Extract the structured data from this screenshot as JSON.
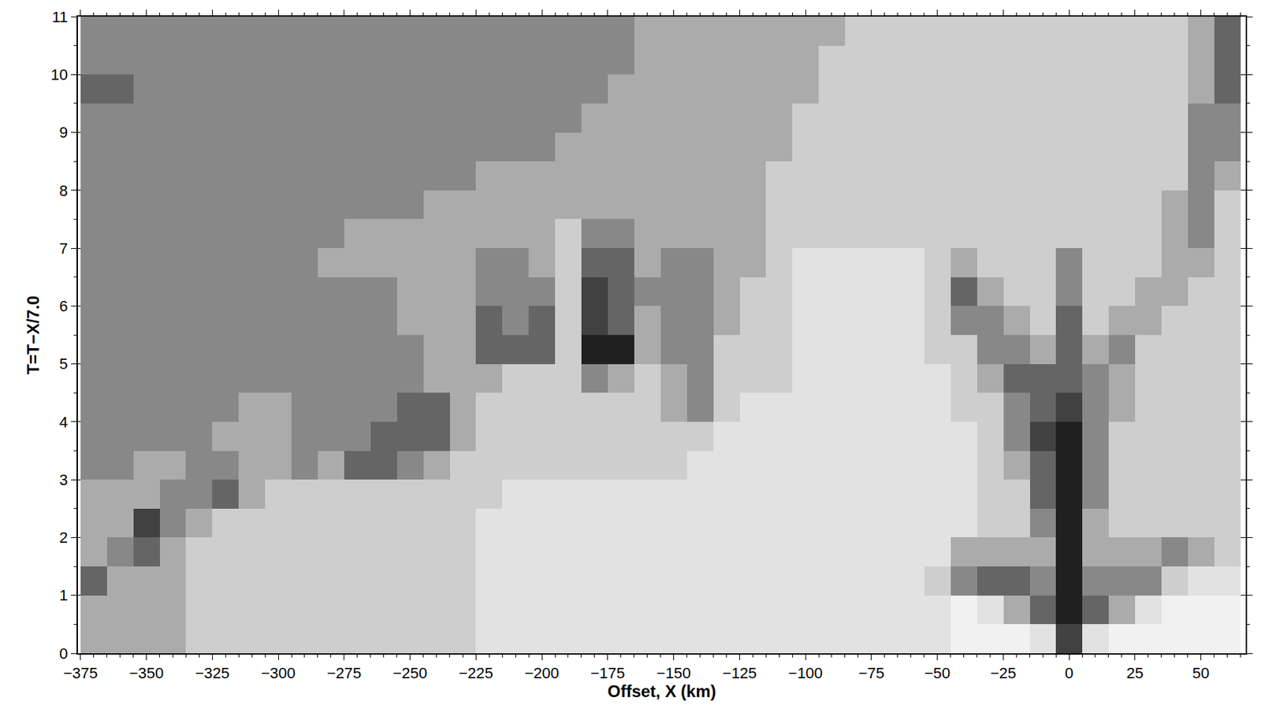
{
  "chart_data": {
    "type": "heatmap",
    "x_label": "Offset, X (km)",
    "y_label": "T=T−X/7.0",
    "xlim": [
      -376,
      67
    ],
    "ylim": [
      0,
      11
    ],
    "xticks": [
      {
        "value": -375,
        "label": "−375"
      },
      {
        "value": -350,
        "label": "−350"
      },
      {
        "value": -325,
        "label": "−325"
      },
      {
        "value": -300,
        "label": "−300"
      },
      {
        "value": -275,
        "label": "−275"
      },
      {
        "value": -250,
        "label": "−250"
      },
      {
        "value": -225,
        "label": "−225"
      },
      {
        "value": -200,
        "label": "−200"
      },
      {
        "value": -175,
        "label": "−175"
      },
      {
        "value": -150,
        "label": "−150"
      },
      {
        "value": -125,
        "label": "−125"
      },
      {
        "value": -100,
        "label": "−100"
      },
      {
        "value": -75,
        "label": "−75"
      },
      {
        "value": -50,
        "label": "−50"
      },
      {
        "value": -25,
        "label": "−25"
      },
      0,
      25,
      50
    ],
    "yticks": [
      0,
      1,
      2,
      3,
      4,
      5,
      6,
      7,
      8,
      9,
      10,
      11
    ],
    "grid": "y",
    "x": [
      -370,
      -360,
      -350,
      -340,
      -330,
      -320,
      -310,
      -300,
      -290,
      -280,
      -270,
      -260,
      -250,
      -240,
      -230,
      -220,
      -210,
      -200,
      -190,
      -180,
      -170,
      -160,
      -150,
      -140,
      -130,
      -120,
      -110,
      -100,
      -90,
      -80,
      -70,
      -60,
      -50,
      -40,
      -30,
      -20,
      -10,
      0,
      10,
      20,
      30,
      40,
      50,
      60
    ],
    "y": [
      0.25,
      0.75,
      1.25,
      1.75,
      2.25,
      2.75,
      3.25,
      3.75,
      4.25,
      4.75,
      5.25,
      5.75,
      6.25,
      6.75,
      7.25,
      7.75,
      8.25,
      8.75,
      9.25,
      9.75,
      10.25,
      10.75
    ],
    "zlim": [
      0,
      9
    ],
    "cells": [
      [
        4,
        4,
        4,
        4,
        3,
        3,
        3,
        3,
        3,
        3,
        3,
        3,
        3,
        3,
        3,
        2,
        2,
        2,
        2,
        2,
        2,
        2,
        2,
        2,
        2,
        2,
        2,
        2,
        2,
        2,
        2,
        2,
        2,
        1,
        1,
        1,
        2,
        7,
        2,
        1,
        1,
        1,
        1,
        1
      ],
      [
        4,
        4,
        4,
        4,
        3,
        3,
        3,
        3,
        3,
        3,
        3,
        3,
        3,
        3,
        3,
        2,
        2,
        2,
        2,
        2,
        2,
        2,
        2,
        2,
        2,
        2,
        2,
        2,
        2,
        2,
        2,
        2,
        2,
        1,
        2,
        4,
        6,
        8,
        6,
        4,
        2,
        1,
        1,
        1
      ],
      [
        6,
        4,
        4,
        4,
        3,
        3,
        3,
        3,
        3,
        3,
        3,
        3,
        3,
        3,
        3,
        2,
        2,
        2,
        2,
        2,
        2,
        2,
        2,
        2,
        2,
        2,
        2,
        2,
        2,
        2,
        2,
        2,
        3,
        5,
        6,
        6,
        5,
        8,
        5,
        5,
        5,
        3,
        2,
        2
      ],
      [
        4,
        5,
        6,
        4,
        3,
        3,
        3,
        3,
        3,
        3,
        3,
        3,
        3,
        3,
        3,
        2,
        2,
        2,
        2,
        2,
        2,
        2,
        2,
        2,
        2,
        2,
        2,
        2,
        2,
        2,
        2,
        2,
        2,
        4,
        4,
        4,
        4,
        8,
        4,
        4,
        4,
        5,
        4,
        3
      ],
      [
        4,
        4,
        7,
        5,
        4,
        3,
        3,
        3,
        3,
        3,
        3,
        3,
        3,
        3,
        3,
        2,
        2,
        2,
        2,
        2,
        2,
        2,
        2,
        2,
        2,
        2,
        2,
        2,
        2,
        2,
        2,
        2,
        2,
        2,
        3,
        3,
        5,
        8,
        4,
        3,
        3,
        3,
        3,
        3
      ],
      [
        4,
        4,
        4,
        5,
        5,
        6,
        4,
        3,
        3,
        3,
        3,
        3,
        3,
        3,
        3,
        3,
        2,
        2,
        2,
        2,
        2,
        2,
        2,
        2,
        2,
        2,
        2,
        2,
        2,
        2,
        2,
        2,
        2,
        2,
        3,
        3,
        6,
        8,
        5,
        3,
        3,
        3,
        3,
        3
      ],
      [
        5,
        5,
        4,
        4,
        5,
        5,
        4,
        4,
        5,
        4,
        6,
        6,
        5,
        4,
        3,
        3,
        3,
        3,
        3,
        3,
        3,
        3,
        3,
        2,
        2,
        2,
        2,
        2,
        2,
        2,
        2,
        2,
        2,
        2,
        3,
        4,
        6,
        8,
        5,
        3,
        3,
        3,
        3,
        3
      ],
      [
        5,
        5,
        5,
        5,
        5,
        4,
        4,
        4,
        5,
        5,
        5,
        6,
        6,
        6,
        4,
        3,
        3,
        3,
        3,
        3,
        3,
        3,
        3,
        3,
        2,
        2,
        2,
        2,
        2,
        2,
        2,
        2,
        2,
        2,
        3,
        5,
        7,
        8,
        5,
        3,
        3,
        3,
        3,
        3
      ],
      [
        5,
        5,
        5,
        5,
        5,
        5,
        4,
        4,
        5,
        5,
        5,
        5,
        6,
        6,
        4,
        3,
        3,
        3,
        3,
        3,
        3,
        3,
        4,
        5,
        3,
        2,
        2,
        2,
        2,
        2,
        2,
        2,
        2,
        3,
        3,
        5,
        6,
        7,
        5,
        4,
        3,
        3,
        3,
        3
      ],
      [
        5,
        5,
        5,
        5,
        5,
        5,
        5,
        5,
        5,
        5,
        5,
        5,
        5,
        4,
        4,
        4,
        3,
        3,
        3,
        5,
        4,
        3,
        4,
        5,
        3,
        3,
        3,
        2,
        2,
        2,
        2,
        2,
        2,
        3,
        4,
        6,
        6,
        6,
        5,
        4,
        3,
        3,
        3,
        3
      ],
      [
        5,
        5,
        5,
        5,
        5,
        5,
        5,
        5,
        5,
        5,
        5,
        5,
        5,
        4,
        4,
        6,
        6,
        6,
        3,
        8,
        8,
        4,
        5,
        5,
        3,
        3,
        3,
        2,
        2,
        2,
        2,
        2,
        3,
        3,
        5,
        5,
        4,
        6,
        4,
        5,
        3,
        3,
        3,
        3
      ],
      [
        5,
        5,
        5,
        5,
        5,
        5,
        5,
        5,
        5,
        5,
        5,
        5,
        4,
        4,
        4,
        6,
        5,
        6,
        3,
        7,
        6,
        4,
        5,
        5,
        4,
        3,
        3,
        2,
        2,
        2,
        2,
        2,
        3,
        5,
        5,
        4,
        3,
        6,
        3,
        4,
        4,
        3,
        3,
        3
      ],
      [
        5,
        5,
        5,
        5,
        5,
        5,
        5,
        5,
        5,
        5,
        5,
        5,
        4,
        4,
        4,
        5,
        5,
        5,
        3,
        7,
        6,
        5,
        5,
        5,
        4,
        3,
        3,
        2,
        2,
        2,
        2,
        2,
        3,
        6,
        4,
        3,
        3,
        5,
        3,
        3,
        4,
        4,
        3,
        3
      ],
      [
        5,
        5,
        5,
        5,
        5,
        5,
        5,
        5,
        5,
        4,
        4,
        4,
        4,
        4,
        4,
        5,
        5,
        4,
        3,
        6,
        6,
        4,
        5,
        5,
        4,
        4,
        3,
        2,
        2,
        2,
        2,
        2,
        3,
        4,
        3,
        3,
        3,
        5,
        3,
        3,
        3,
        4,
        4,
        3
      ],
      [
        5,
        5,
        5,
        5,
        5,
        5,
        5,
        5,
        5,
        5,
        4,
        4,
        4,
        4,
        4,
        4,
        4,
        4,
        3,
        5,
        5,
        4,
        4,
        4,
        4,
        4,
        3,
        3,
        3,
        3,
        3,
        3,
        3,
        3,
        3,
        3,
        3,
        3,
        3,
        3,
        3,
        4,
        5,
        3
      ],
      [
        5,
        5,
        5,
        5,
        5,
        5,
        5,
        5,
        5,
        5,
        5,
        5,
        5,
        4,
        4,
        4,
        4,
        4,
        4,
        4,
        4,
        4,
        4,
        4,
        4,
        4,
        3,
        3,
        3,
        3,
        3,
        3,
        3,
        3,
        3,
        3,
        3,
        3,
        3,
        3,
        3,
        4,
        5,
        3
      ],
      [
        5,
        5,
        5,
        5,
        5,
        5,
        5,
        5,
        5,
        5,
        5,
        5,
        5,
        5,
        5,
        4,
        4,
        4,
        4,
        4,
        4,
        4,
        4,
        4,
        4,
        4,
        3,
        3,
        3,
        3,
        3,
        3,
        3,
        3,
        3,
        3,
        3,
        3,
        3,
        3,
        3,
        3,
        5,
        4
      ],
      [
        5,
        5,
        5,
        5,
        5,
        5,
        5,
        5,
        5,
        5,
        5,
        5,
        5,
        5,
        5,
        5,
        5,
        5,
        4,
        4,
        4,
        4,
        4,
        4,
        4,
        4,
        4,
        3,
        3,
        3,
        3,
        3,
        3,
        3,
        3,
        3,
        3,
        3,
        3,
        3,
        3,
        3,
        5,
        5
      ],
      [
        5,
        5,
        5,
        5,
        5,
        5,
        5,
        5,
        5,
        5,
        5,
        5,
        5,
        5,
        5,
        5,
        5,
        5,
        5,
        4,
        4,
        4,
        4,
        4,
        4,
        4,
        4,
        3,
        3,
        3,
        3,
        3,
        3,
        3,
        3,
        3,
        3,
        3,
        3,
        3,
        3,
        3,
        5,
        5
      ],
      [
        6,
        6,
        5,
        5,
        5,
        5,
        5,
        5,
        5,
        5,
        5,
        5,
        5,
        5,
        5,
        5,
        5,
        5,
        5,
        5,
        4,
        4,
        4,
        4,
        4,
        4,
        4,
        4,
        3,
        3,
        3,
        3,
        3,
        3,
        3,
        3,
        3,
        3,
        3,
        3,
        3,
        3,
        4,
        6
      ],
      [
        5,
        5,
        5,
        5,
        5,
        5,
        5,
        5,
        5,
        5,
        5,
        5,
        5,
        5,
        5,
        5,
        5,
        5,
        5,
        5,
        5,
        4,
        4,
        4,
        4,
        4,
        4,
        4,
        3,
        3,
        3,
        3,
        3,
        3,
        3,
        3,
        3,
        3,
        3,
        3,
        3,
        3,
        4,
        6
      ],
      [
        5,
        5,
        5,
        5,
        5,
        5,
        5,
        5,
        5,
        5,
        5,
        5,
        5,
        5,
        5,
        5,
        5,
        5,
        5,
        5,
        5,
        4,
        4,
        4,
        4,
        4,
        4,
        4,
        4,
        3,
        3,
        3,
        3,
        3,
        3,
        3,
        3,
        3,
        3,
        3,
        3,
        3,
        4,
        6
      ]
    ]
  }
}
